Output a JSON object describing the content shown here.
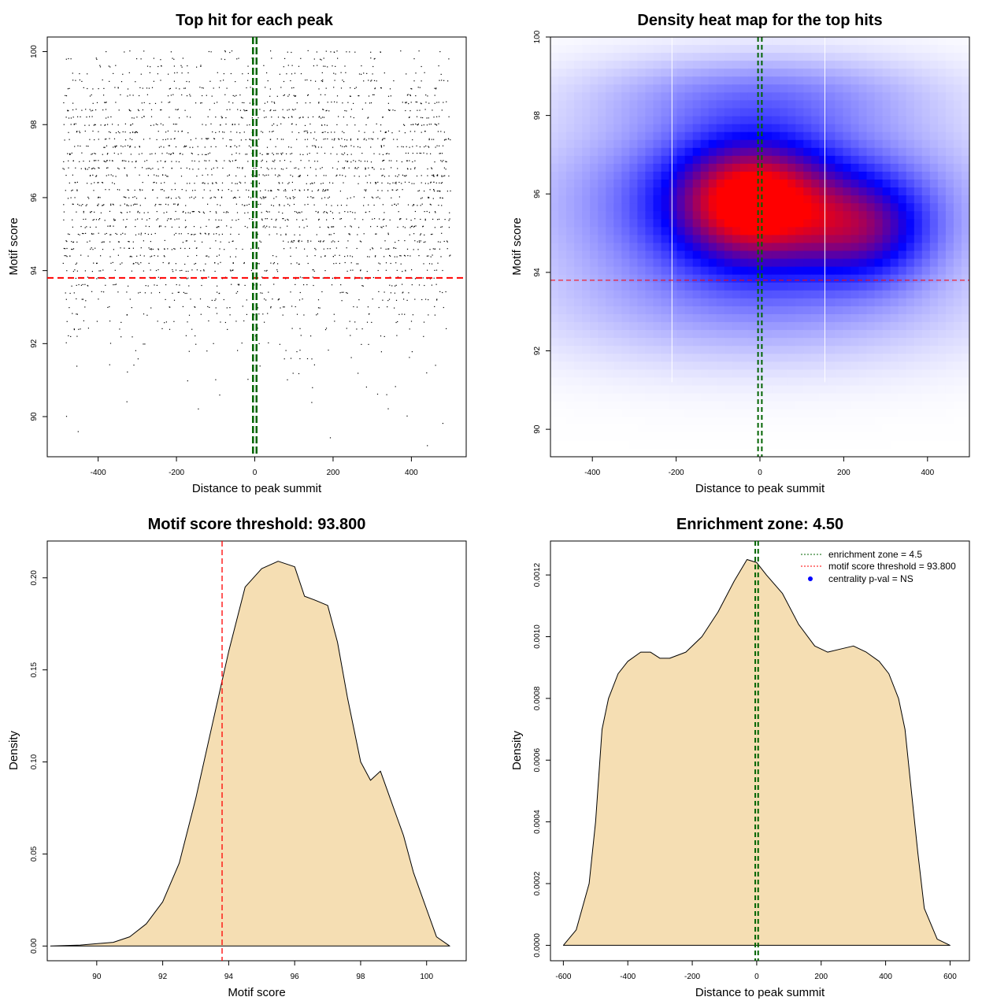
{
  "chart_data": [
    {
      "type": "scatter",
      "title": "Top hit for each peak",
      "xlabel": "Distance to peak summit",
      "ylabel": "Motif score",
      "xlim": [
        -530,
        540
      ],
      "ylim": [
        88.9,
        100.4
      ],
      "xticks": [
        -400,
        -200,
        0,
        200,
        400
      ],
      "yticks": [
        90,
        92,
        94,
        96,
        98,
        100
      ],
      "x_range": [
        -490,
        500
      ],
      "score_levels": [
        100,
        99.8,
        99.6,
        99.4,
        99.2,
        99,
        98.8,
        98.6,
        98.4,
        98.2,
        98,
        97.8,
        97.6,
        97.4,
        97.2,
        97,
        96.8,
        96.6,
        96.4,
        96.2,
        96,
        95.8,
        95.6,
        95.4,
        95.2,
        95,
        94.8,
        94.6,
        94.4,
        94.2,
        94,
        93.8,
        93.6,
        93.4,
        93.2,
        93,
        92.8,
        92.6,
        92.4,
        92.2,
        92,
        91.8,
        91.6,
        91.4,
        91.2,
        91,
        90.8,
        90.6,
        90.4,
        90.2,
        90,
        89.8,
        89.6,
        89.4,
        89.2
      ],
      "points_per_level": [
        30,
        30,
        35,
        40,
        45,
        55,
        60,
        65,
        70,
        75,
        80,
        85,
        90,
        90,
        95,
        95,
        95,
        95,
        90,
        90,
        90,
        90,
        85,
        85,
        80,
        80,
        75,
        75,
        70,
        65,
        60,
        55,
        50,
        45,
        40,
        35,
        30,
        25,
        20,
        15,
        12,
        10,
        8,
        6,
        5,
        4,
        3,
        3,
        2,
        2,
        2,
        1,
        1,
        1,
        1
      ],
      "threshold": 93.8,
      "enrichment_zone": [
        -4.5,
        4.5
      ],
      "colors": {
        "points": "#000000",
        "threshold": "#ff0000",
        "zone": "#006400"
      }
    },
    {
      "type": "heatmap",
      "title": "Density heat map for the top hits",
      "xlabel": "Distance to peak summit",
      "ylabel": "Motif score",
      "xlim": [
        -500,
        500
      ],
      "ylim": [
        89.3,
        100
      ],
      "xticks": [
        -400,
        -200,
        0,
        200,
        400
      ],
      "yticks": [
        90,
        92,
        94,
        96,
        98,
        100
      ],
      "blobs": [
        {
          "x": -20,
          "y": 95.8,
          "sx": 130,
          "sy": 1.1,
          "w": 1.0
        },
        {
          "x": 250,
          "y": 95.1,
          "sx": 110,
          "sy": 0.9,
          "w": 0.6
        },
        {
          "x": 0,
          "y": 95.8,
          "sx": 340,
          "sy": 1.6,
          "w": 0.6
        },
        {
          "x": 0,
          "y": 98.6,
          "sx": 280,
          "sy": 0.7,
          "w": 0.25
        },
        {
          "x": 0,
          "y": 93.0,
          "sx": 380,
          "sy": 1.1,
          "w": 0.2
        }
      ],
      "colors": {
        "low": "#ffffff",
        "mid": "#0000ff",
        "high": "#ff0000"
      },
      "threshold": 93.8,
      "enrichment_zone": [
        -4.5,
        4.5
      ],
      "white_lines_x": [
        -210,
        155
      ]
    },
    {
      "type": "area",
      "title": "Motif score threshold: 93.800",
      "xlabel": "Motif score",
      "ylabel": "Density",
      "xlim": [
        88.5,
        101.2
      ],
      "ylim": [
        -0.008,
        0.22
      ],
      "xticks": [
        90,
        92,
        94,
        96,
        98,
        100
      ],
      "xtick_labels": [
        "90",
        "92",
        "94",
        "96",
        "98",
        "100"
      ],
      "yticks": [
        0.0,
        0.05,
        0.1,
        0.15,
        0.2
      ],
      "ytick_labels": [
        "0.00",
        "0.05",
        "0.10",
        "0.15",
        "0.20"
      ],
      "x": [
        88.6,
        89.5,
        90.5,
        91.0,
        91.5,
        92.0,
        92.5,
        93.0,
        93.5,
        94.0,
        94.5,
        95.0,
        95.5,
        96.0,
        96.3,
        96.6,
        97.0,
        97.3,
        97.6,
        98.0,
        98.3,
        98.6,
        99.0,
        99.3,
        99.6,
        100.0,
        100.3,
        100.7
      ],
      "y": [
        0.0,
        0.0005,
        0.002,
        0.005,
        0.012,
        0.024,
        0.045,
        0.08,
        0.12,
        0.16,
        0.195,
        0.205,
        0.209,
        0.206,
        0.19,
        0.188,
        0.185,
        0.165,
        0.135,
        0.1,
        0.09,
        0.095,
        0.075,
        0.06,
        0.04,
        0.02,
        0.005,
        0.0
      ],
      "threshold": 93.8,
      "colors": {
        "fill": "#f5deb3",
        "line": "#000000",
        "threshold": "#ff0000"
      }
    },
    {
      "type": "area",
      "title": "Enrichment zone: 4.50",
      "xlabel": "Distance to peak summit",
      "ylabel": "Density",
      "xlim": [
        -640,
        660
      ],
      "ylim": [
        -5e-05,
        0.00131
      ],
      "xticks": [
        -600,
        -400,
        -200,
        0,
        200,
        400,
        600
      ],
      "yticks": [
        0.0,
        0.0002,
        0.0004,
        0.0006,
        0.0008,
        0.001,
        0.0012
      ],
      "ytick_labels": [
        "0.0000",
        "0.0002",
        "0.0004",
        "0.0006",
        "0.0008",
        "0.0010",
        "0.0012"
      ],
      "x": [
        -600,
        -560,
        -520,
        -500,
        -480,
        -460,
        -430,
        -400,
        -360,
        -330,
        -300,
        -270,
        -220,
        -170,
        -120,
        -70,
        -30,
        0,
        30,
        80,
        130,
        180,
        220,
        260,
        300,
        340,
        380,
        410,
        440,
        460,
        480,
        500,
        520,
        560,
        600
      ],
      "y": [
        0.0,
        5e-05,
        0.0002,
        0.0004,
        0.0007,
        0.0008,
        0.00088,
        0.00092,
        0.00095,
        0.00095,
        0.00093,
        0.00093,
        0.00095,
        0.001,
        0.00108,
        0.00118,
        0.00125,
        0.00124,
        0.0012,
        0.00114,
        0.00104,
        0.00097,
        0.00095,
        0.00096,
        0.00097,
        0.00095,
        0.00092,
        0.00088,
        0.0008,
        0.0007,
        0.0005,
        0.0003,
        0.00012,
        2e-05,
        0.0
      ],
      "enrichment_zone": [
        -4.5,
        4.5
      ],
      "legend": [
        {
          "label": "enrichment zone = 4.5",
          "kind": "dotted",
          "color": "#006400"
        },
        {
          "label": "motif score threshold = 93.800",
          "kind": "dotted",
          "color": "#ff0000"
        },
        {
          "label": "centrality p-val = NS",
          "kind": "point",
          "color": "#0000ff"
        }
      ],
      "colors": {
        "fill": "#f5deb3",
        "line": "#000000",
        "zone": "#006400"
      }
    }
  ]
}
